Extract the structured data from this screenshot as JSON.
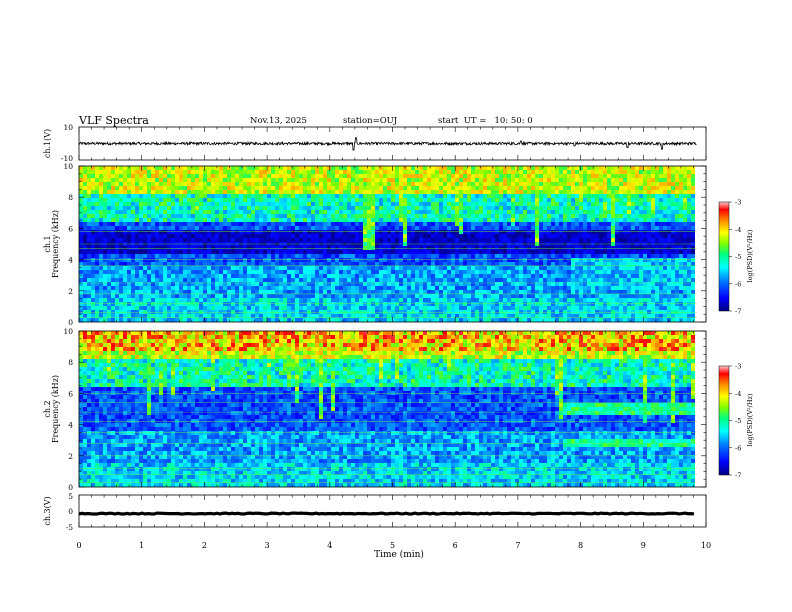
{
  "header": {
    "title": "VLF Spectra",
    "date": "Nov.13, 2025",
    "station": "station=OUJ",
    "start_ut": "start  UT =   10: 50: 0"
  },
  "chart_data": [
    {
      "type": "line",
      "name": "ch1-waveform",
      "ylabel": "ch.1(V)",
      "ylim": [
        -10,
        10
      ],
      "yticks": [
        "10",
        "-10"
      ],
      "baseline": 0,
      "noise_amplitude": 0.8,
      "spikes": [
        {
          "t": 4.42,
          "v": 3.5
        },
        {
          "t": 4.38,
          "v": -4.0
        },
        {
          "t": 7.05,
          "v": 1.5
        },
        {
          "t": 7.9,
          "v": -1.5
        },
        {
          "t": 8.75,
          "v": -2.5
        },
        {
          "t": 9.3,
          "v": -3.5
        }
      ]
    },
    {
      "type": "heatmap",
      "name": "ch1-spectrogram",
      "ylabel_top": "ch.1",
      "ylabel": "Frequency (kHz)",
      "ylim": [
        0,
        10
      ],
      "yticks": [
        "0",
        "2",
        "4",
        "6",
        "8",
        "10"
      ],
      "colorbar_label": "log(PSD)(V²/Hz)",
      "colorbar_ticks": [
        "-3",
        "-4",
        "-5",
        "-6",
        "-7"
      ],
      "colorbar_range": [
        -7,
        -3
      ],
      "noise_band_khz": [
        4.3,
        6.0
      ],
      "event_start_min": 7.8
    },
    {
      "type": "heatmap",
      "name": "ch2-spectrogram",
      "ylabel_top": "ch.2",
      "ylabel": "Frequency (kHz)",
      "ylim": [
        0,
        10
      ],
      "yticks": [
        "0",
        "2",
        "4",
        "6",
        "8",
        "10"
      ],
      "colorbar_label": "log(PSD)(V²/Hz)",
      "colorbar_ticks": [
        "-3",
        "-4",
        "-5",
        "-6",
        "-7"
      ],
      "colorbar_range": [
        -7,
        -3
      ],
      "event_start_min": 7.7,
      "event_bands_khz": [
        [
          2.5,
          3.0
        ],
        [
          4.5,
          5.5
        ]
      ]
    },
    {
      "type": "line",
      "name": "ch3-waveform",
      "ylabel": "ch.3(V)",
      "ylim": [
        -5,
        5
      ],
      "yticks": [
        "5",
        "0",
        "-5"
      ],
      "baseline": -0.8,
      "noise_amplitude": 0.15
    }
  ],
  "x_axis": {
    "xlabel": "Time (min)",
    "xlim": [
      0,
      10
    ],
    "data_end": 9.85,
    "ticks": [
      "0",
      "1",
      "2",
      "3",
      "4",
      "5",
      "6",
      "7",
      "8",
      "9",
      "10"
    ]
  },
  "colors": {
    "colormap": [
      "#000080",
      "#0000ff",
      "#0080ff",
      "#00ffff",
      "#00ff80",
      "#80ff00",
      "#ffff00",
      "#ff8000",
      "#ff0000",
      "#ffc0c0"
    ]
  }
}
